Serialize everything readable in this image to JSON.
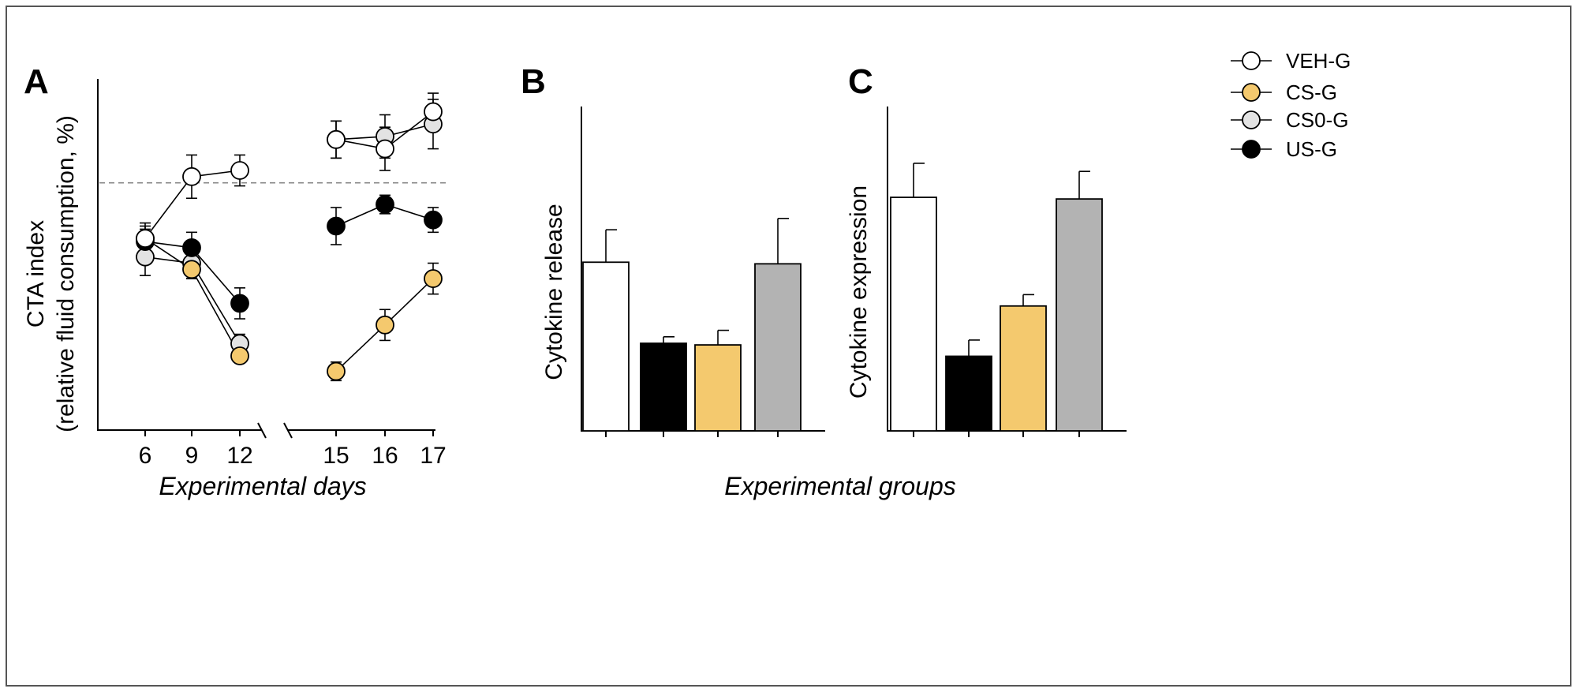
{
  "panels": {
    "a": {
      "letter": "A"
    },
    "b": {
      "letter": "B"
    },
    "c": {
      "letter": "C"
    }
  },
  "legend": [
    {
      "label": "VEH-G",
      "color": "#ffffff"
    },
    {
      "label": "CS-G",
      "color": "#f4c96e"
    },
    {
      "label": "CS0-G",
      "color": "#e3e3e3"
    },
    {
      "label": "US-G",
      "color": "#000000"
    }
  ],
  "shared_xlabel": "Experimental groups",
  "chart_data": [
    {
      "type": "line",
      "title": "",
      "ylabel_line1": "CTA index",
      "ylabel_line2": "(relative fluid consumption, %)",
      "xlabel": "Experimental days",
      "x": [
        6,
        9,
        12,
        15,
        16,
        17
      ],
      "x_labels": [
        "6",
        "9",
        "12",
        "15",
        "16",
        "17"
      ],
      "axis_break_between": [
        12,
        15
      ],
      "reference_line": 100,
      "ylim": [
        20,
        140
      ],
      "series": [
        {
          "name": "VEH-G",
          "color": "#ffffff",
          "segments": [
            [
              6,
              9,
              12
            ],
            [
              15,
              16,
              17
            ]
          ],
          "values": [
            82,
            102,
            104,
            114,
            111,
            123
          ],
          "errors": [
            5,
            7,
            5,
            6,
            7,
            6
          ]
        },
        {
          "name": "CS-G",
          "color": "#f4c96e",
          "segments": [
            [
              6,
              9,
              12
            ],
            [
              15,
              16,
              17
            ]
          ],
          "values": [
            82,
            72,
            44,
            39,
            54,
            69
          ],
          "errors": [
            4,
            3,
            2,
            3,
            5,
            5
          ]
        },
        {
          "name": "CS0-G",
          "color": "#e3e3e3",
          "segments": [
            [
              6,
              9,
              12
            ],
            [
              15,
              16,
              17
            ]
          ],
          "values": [
            76,
            74,
            48,
            114,
            115,
            119
          ],
          "errors": [
            6,
            5,
            3,
            6,
            7,
            8
          ]
        },
        {
          "name": "US-G",
          "color": "#000000",
          "segments": [
            [
              6,
              9,
              12
            ],
            [
              15,
              16,
              17
            ]
          ],
          "values": [
            81,
            79,
            61,
            86,
            93,
            88
          ],
          "errors": [
            4,
            5,
            5,
            6,
            3,
            4
          ]
        }
      ]
    },
    {
      "type": "bar",
      "title": "",
      "ylabel": "Cytokine release",
      "categories": [
        "VEH-G",
        "US-G",
        "CS-G",
        "CS0-G"
      ],
      "colors": [
        "#ffffff",
        "#000000",
        "#f4c96e",
        "#b3b3b3"
      ],
      "values": [
        52,
        27,
        26.5,
        51.5
      ],
      "errors": [
        10,
        2,
        4.5,
        14
      ],
      "ylim": [
        0,
        100
      ]
    },
    {
      "type": "bar",
      "title": "",
      "ylabel": "Cytokine expression",
      "categories": [
        "VEH-G",
        "US-G",
        "CS-G",
        "CS0-G"
      ],
      "colors": [
        "#ffffff",
        "#000000",
        "#f4c96e",
        "#b3b3b3"
      ],
      "values": [
        72,
        23,
        38.5,
        71.5
      ],
      "errors": [
        10.5,
        5,
        3.5,
        8.5
      ],
      "ylim": [
        0,
        100
      ]
    }
  ]
}
